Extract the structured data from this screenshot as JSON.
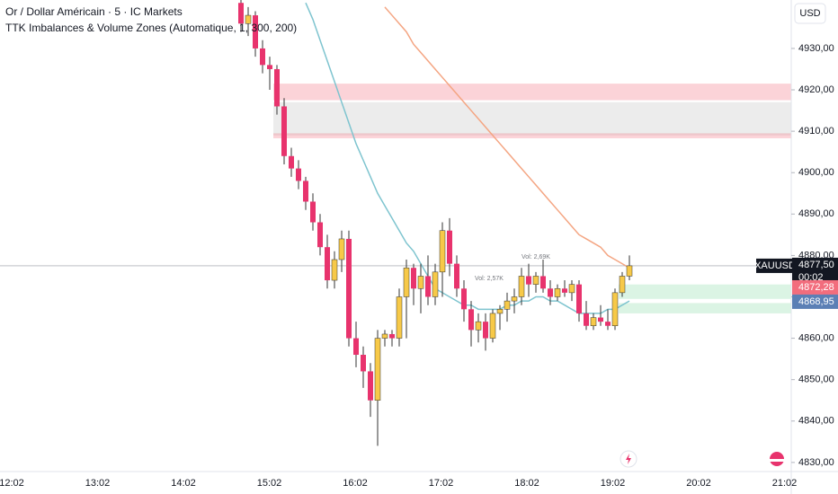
{
  "chart_data": {
    "type": "candlestick",
    "title": "Or / Dollar Américain · 5 · IC Markets",
    "subtitle": "TTK Imbalances & Volume Zones (Automatique, 1, 300, 200)",
    "currency": "USD",
    "symbol": "XAUUSD",
    "countdown": "00:02",
    "last_price": {
      "value": 4877.5,
      "label": "4877,50"
    },
    "price_markers": [
      {
        "value": 4872.28,
        "label": "4872,28",
        "color": "#f26d7d"
      },
      {
        "value": 4868.95,
        "label": "4868,95",
        "color": "#5b7fb5"
      }
    ],
    "up_color": "#f7c948",
    "down_color": "#e8336d",
    "ylim": [
      4827.8,
      4941.7
    ],
    "yticks": [
      {
        "value": 4830,
        "label": "4830,00"
      },
      {
        "value": 4840,
        "label": "4840,00"
      },
      {
        "value": 4850,
        "label": "4850,00"
      },
      {
        "value": 4860,
        "label": "4860,00"
      },
      {
        "value": 4870,
        "label": "4870,00"
      },
      {
        "value": 4880,
        "label": "4880,00"
      },
      {
        "value": 4890,
        "label": "4890,00"
      },
      {
        "value": 4900,
        "label": "4900,00"
      },
      {
        "value": 4910,
        "label": "4910,00"
      },
      {
        "value": 4920,
        "label": "4920,00"
      },
      {
        "value": 4930,
        "label": "4930,00"
      }
    ],
    "time_labels": [
      "12:02",
      "13:02",
      "14:02",
      "15:02",
      "16:02",
      "17:02",
      "18:02",
      "19:02",
      "20:02",
      "21:02"
    ],
    "open": [
      4941,
      4936,
      4938,
      4930,
      4926,
      4925,
      4916,
      4904,
      4901,
      4898,
      4893,
      4888,
      4882,
      4874,
      4879,
      4884,
      4860,
      4856,
      4852,
      4845,
      4860,
      4861,
      4860,
      4870,
      4877,
      4872,
      4875,
      4870,
      4876,
      4886,
      4878,
      4872,
      4867,
      4862,
      4864,
      4860,
      4866,
      4867,
      4869,
      4870,
      4875,
      4873,
      4875,
      4872,
      4870,
      4872,
      4871,
      4873,
      4866,
      4863,
      4865,
      4864,
      4863,
      4871,
      4875
    ],
    "high": [
      4942,
      4940,
      4939,
      4932,
      4928,
      4926,
      4918,
      4906,
      4903,
      4899,
      4895,
      4890,
      4885,
      4881,
      4886,
      4886,
      4864,
      4858,
      4854,
      4862,
      4862,
      4862,
      4872,
      4879,
      4878,
      4878,
      4880,
      4878,
      4888,
      4889,
      4880,
      4874,
      4869,
      4866,
      4866,
      4867,
      4868,
      4871,
      4872,
      4877,
      4878,
      4876,
      4879,
      4874,
      4873,
      4874,
      4874,
      4874,
      4869,
      4866,
      4868,
      4867,
      4872,
      4876,
      4880
    ],
    "low": [
      4934,
      4933,
      4928,
      4924,
      4920,
      4914,
      4902,
      4899,
      4896,
      4891,
      4886,
      4880,
      4872,
      4872,
      4876,
      4858,
      4853,
      4848,
      4841,
      4834,
      4858,
      4858,
      4858,
      4860,
      4868,
      4866,
      4868,
      4868,
      4870,
      4875,
      4870,
      4864,
      4858,
      4859,
      4857,
      4859,
      4862,
      4864,
      4866,
      4868,
      4870,
      4871,
      4871,
      4868,
      4869,
      4870,
      4869,
      4864,
      4862,
      4862,
      4863,
      4862,
      4862,
      4870,
      4874
    ],
    "close": [
      4936,
      4938,
      4930,
      4926,
      4925,
      4916,
      4904,
      4901,
      4898,
      4893,
      4888,
      4882,
      4874,
      4879,
      4884,
      4860,
      4856,
      4852,
      4845,
      4860,
      4861,
      4860,
      4870,
      4877,
      4872,
      4875,
      4870,
      4876,
      4886,
      4878,
      4872,
      4867,
      4862,
      4864,
      4860,
      4866,
      4867,
      4869,
      4870,
      4875,
      4873,
      4875,
      4872,
      4870,
      4872,
      4871,
      4873,
      4866,
      4863,
      4865,
      4864,
      4863,
      4871,
      4875,
      4877.5
    ],
    "lines": [
      {
        "color": "#7ec4cf",
        "values": [
          null,
          null,
          null,
          null,
          null,
          null,
          null,
          null,
          null,
          4941,
          4937,
          4932,
          4927,
          4922,
          4917,
          4912,
          4907,
          4903,
          4899,
          4895,
          4892,
          4889,
          4886,
          4883,
          4881,
          4878,
          4875,
          4872,
          4871,
          4870,
          4869,
          4868,
          4868,
          4867,
          4867,
          4867,
          4867,
          4868,
          4868,
          4869,
          4869,
          4870,
          4870,
          4869,
          4869,
          4868,
          4867,
          4866,
          4866,
          4866,
          4866,
          4867,
          4867,
          4868,
          4869
        ]
      },
      {
        "color": "#f4a582",
        "values": [
          null,
          null,
          null,
          null,
          null,
          null,
          null,
          null,
          null,
          null,
          null,
          null,
          null,
          null,
          null,
          null,
          null,
          null,
          null,
          null,
          4940,
          4938,
          4936,
          4934,
          4931,
          4929,
          4927,
          4925,
          4923,
          4921,
          4919,
          4917,
          4915,
          4913,
          4911,
          4909,
          4907,
          4905,
          4903,
          4901,
          4899,
          4897,
          4895,
          4893,
          4891,
          4889,
          4887,
          4885,
          4884,
          4883,
          4882,
          4880,
          4879,
          4878,
          4877
        ]
      }
    ],
    "zones": [
      {
        "start": 5,
        "low": 4909,
        "high": 4917,
        "color": "rgba(200,200,200,0.35)"
      },
      {
        "start": 5,
        "low": 4917.5,
        "high": 4921.5,
        "color": "rgba(242,109,125,0.3)"
      },
      {
        "start": 5,
        "low": 4908.3,
        "high": 4909.5,
        "color": "rgba(242,109,125,0.3)"
      },
      {
        "start": 53,
        "low": 4869.5,
        "high": 4873,
        "color": "rgba(76,200,120,0.2)"
      },
      {
        "start": 53,
        "low": 4866,
        "high": 4868.5,
        "color": "rgba(76,200,120,0.2)"
      }
    ],
    "annotations": [
      "Vol: 2,69K",
      "Vol: 2,57K"
    ]
  }
}
